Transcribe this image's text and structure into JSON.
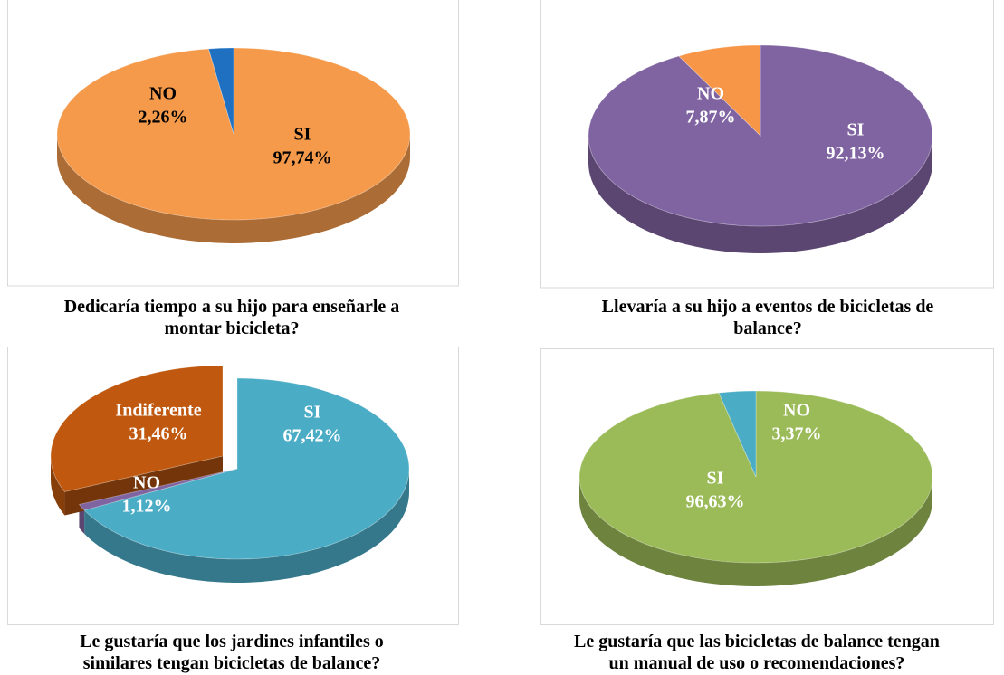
{
  "chart_data": [
    {
      "type": "pie",
      "title": "Dedicaría tiempo a su hijo para enseñarle a\nmontar bicicleta?",
      "categories": [
        "SI",
        "NO"
      ],
      "values": [
        97.74,
        2.26
      ],
      "value_labels": [
        "97,74%",
        "2,26%"
      ],
      "colors": [
        "#f59a4b",
        "#1f70c1"
      ],
      "label_color": "#000000"
    },
    {
      "type": "pie",
      "title": "Llevaría a su hijo a eventos de bicicletas de\nbalance?",
      "categories": [
        "SI",
        "NO"
      ],
      "values": [
        92.13,
        7.87
      ],
      "value_labels": [
        "92,13%",
        "7,87%"
      ],
      "colors": [
        "#8064a2",
        "#f79646"
      ],
      "label_color": "#ffffff"
    },
    {
      "type": "pie",
      "title": "Le gustaría que los jardines infantiles o\nsimilares tengan bicicletas de balance?",
      "categories": [
        "SI",
        "NO",
        "Indiferente"
      ],
      "values": [
        67.42,
        1.12,
        31.46
      ],
      "value_labels": [
        "67,42%",
        "1,12%",
        "31,46%"
      ],
      "colors": [
        "#4bacc6",
        "#8064a2",
        "#c0590f"
      ],
      "label_color": "#ffffff"
    },
    {
      "type": "pie",
      "title": "Le gustaría que las bicicletas de balance tengan\nun manual de uso o recomendaciones?",
      "categories": [
        "SI",
        "NO"
      ],
      "values": [
        96.63,
        3.37
      ],
      "value_labels": [
        "96,63%",
        "3,37%"
      ],
      "colors": [
        "#9bbb59",
        "#4bacc6"
      ],
      "label_color": "#ffffff"
    }
  ]
}
